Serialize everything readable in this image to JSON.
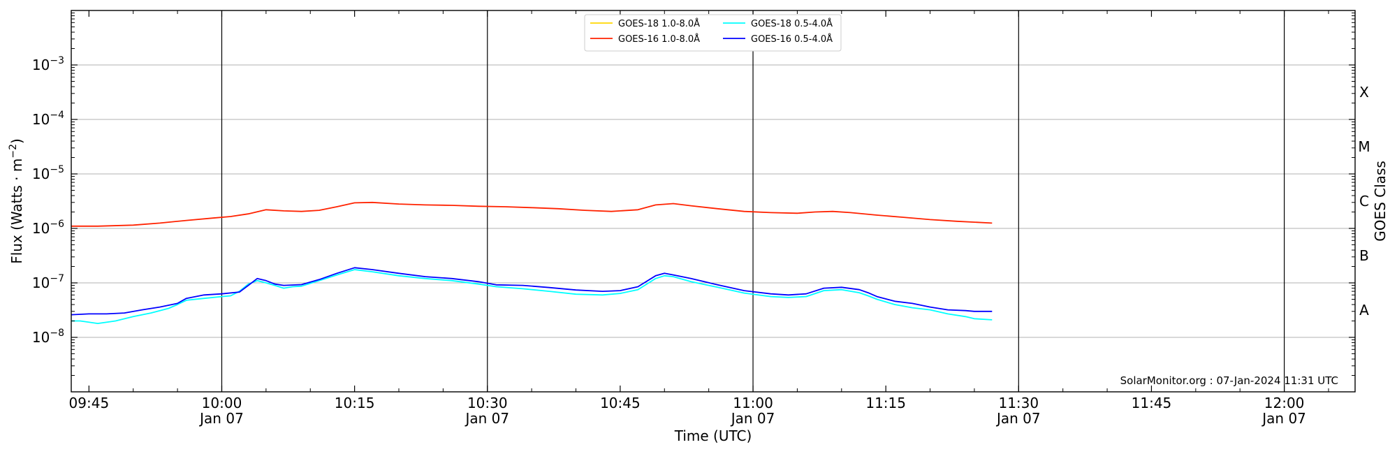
{
  "chart_data": {
    "type": "line",
    "title": "",
    "xlabel": "Time (UTC)",
    "ylabel": "Flux (Watts · m",
    "ylabel_sup": "−2",
    "ylabel_close": ")",
    "y2label": "GOES Class",
    "yscale": "log",
    "ylim": [
      1e-09,
      0.01
    ],
    "xlim": [
      "09:43",
      "12:08"
    ],
    "grid": "horizontal",
    "legend_position": "top-center",
    "y_ticks": [
      {
        "value": 1e-08,
        "base": "10",
        "exp": "−8"
      },
      {
        "value": 1e-07,
        "base": "10",
        "exp": "−7"
      },
      {
        "value": 1e-06,
        "base": "10",
        "exp": "−6"
      },
      {
        "value": 1e-05,
        "base": "10",
        "exp": "−5"
      },
      {
        "value": 0.0001,
        "base": "10",
        "exp": "−4"
      },
      {
        "value": 0.001,
        "base": "10",
        "exp": "−3"
      }
    ],
    "class_labels": [
      {
        "label": "A",
        "value": 1e-08
      },
      {
        "label": "B",
        "value": 1e-07
      },
      {
        "label": "C",
        "value": 1e-06
      },
      {
        "label": "M",
        "value": 1e-05
      },
      {
        "label": "X",
        "value": 0.0001
      }
    ],
    "x_ticks": [
      {
        "time": "09:45",
        "label": "09:45",
        "date": ""
      },
      {
        "time": "10:00",
        "label": "10:00",
        "date": "Jan 07"
      },
      {
        "time": "10:15",
        "label": "10:15",
        "date": ""
      },
      {
        "time": "10:30",
        "label": "10:30",
        "date": "Jan 07"
      },
      {
        "time": "10:45",
        "label": "10:45",
        "date": ""
      },
      {
        "time": "11:00",
        "label": "11:00",
        "date": "Jan 07"
      },
      {
        "time": "11:15",
        "label": "11:15",
        "date": ""
      },
      {
        "time": "11:30",
        "label": "11:30",
        "date": "Jan 07"
      },
      {
        "time": "11:45",
        "label": "11:45",
        "date": ""
      },
      {
        "time": "12:00",
        "label": "12:00",
        "date": "Jan 07"
      }
    ],
    "vertical_lines": [
      "10:00",
      "10:30",
      "11:00",
      "11:30",
      "12:00"
    ],
    "series": [
      {
        "name": "GOES-18 1.0-8.0Å",
        "color": "#ffd700",
        "x": [],
        "y": []
      },
      {
        "name": "GOES-16 1.0-8.0Å",
        "color": "#ff2200",
        "x": [
          "09:43",
          "09:46",
          "09:50",
          "09:53",
          "09:56",
          "09:59",
          "10:01",
          "10:03",
          "10:05",
          "10:07",
          "10:09",
          "10:11",
          "10:13",
          "10:15",
          "10:17",
          "10:20",
          "10:23",
          "10:26",
          "10:29",
          "10:32",
          "10:35",
          "10:38",
          "10:41",
          "10:44",
          "10:47",
          "10:49",
          "10:51",
          "10:53",
          "10:56",
          "10:59",
          "11:02",
          "11:05",
          "11:07",
          "11:09",
          "11:11",
          "11:14",
          "11:17",
          "11:20",
          "11:23",
          "11:27"
        ],
        "y": [
          1.1e-06,
          1.1e-06,
          1.15e-06,
          1.25e-06,
          1.4e-06,
          1.55e-06,
          1.65e-06,
          1.85e-06,
          2.2e-06,
          2.1e-06,
          2.05e-06,
          2.15e-06,
          2.5e-06,
          2.95e-06,
          3e-06,
          2.8e-06,
          2.7e-06,
          2.65e-06,
          2.55e-06,
          2.5e-06,
          2.4e-06,
          2.3e-06,
          2.15e-06,
          2.05e-06,
          2.2e-06,
          2.7e-06,
          2.85e-06,
          2.6e-06,
          2.3e-06,
          2.05e-06,
          1.95e-06,
          1.9e-06,
          2e-06,
          2.05e-06,
          1.95e-06,
          1.75e-06,
          1.6e-06,
          1.45e-06,
          1.35e-06,
          1.25e-06
        ]
      },
      {
        "name": "GOES-18 0.5-4.0Å",
        "color": "#00ffff",
        "x": [
          "09:43",
          "09:44",
          "09:46",
          "09:48",
          "09:50",
          "09:52",
          "09:54",
          "09:55",
          "09:56",
          "09:58",
          "10:00",
          "10:01",
          "10:02",
          "10:03",
          "10:04",
          "10:05",
          "10:06",
          "10:07",
          "10:08",
          "10:09",
          "10:11",
          "10:13",
          "10:15",
          "10:17",
          "10:20",
          "10:23",
          "10:26",
          "10:29",
          "10:31",
          "10:34",
          "10:37",
          "10:40",
          "10:43",
          "10:45",
          "10:47",
          "10:49",
          "10:50",
          "10:51",
          "10:53",
          "10:56",
          "10:59",
          "11:02",
          "11:04",
          "11:06",
          "11:08",
          "11:10",
          "11:12",
          "11:13",
          "11:14",
          "11:16",
          "11:18",
          "11:20",
          "11:22",
          "11:24",
          "11:25",
          "11:27"
        ],
        "y": [
          2e-08,
          2e-08,
          1.8e-08,
          2e-08,
          2.4e-08,
          2.8e-08,
          3.4e-08,
          4e-08,
          4.8e-08,
          5.2e-08,
          5.6e-08,
          5.8e-08,
          7e-08,
          9.5e-08,
          1.1e-07,
          1e-07,
          9e-08,
          8e-08,
          8.5e-08,
          8.7e-08,
          1.1e-07,
          1.4e-07,
          1.75e-07,
          1.6e-07,
          1.35e-07,
          1.2e-07,
          1.1e-07,
          9.5e-08,
          8.5e-08,
          7.8e-08,
          7e-08,
          6.2e-08,
          6e-08,
          6.4e-08,
          7.5e-08,
          1.2e-07,
          1.35e-07,
          1.3e-07,
          1.05e-07,
          8.3e-08,
          6.5e-08,
          5.6e-08,
          5.4e-08,
          5.6e-08,
          7.2e-08,
          7.5e-08,
          6.6e-08,
          5.8e-08,
          5e-08,
          4e-08,
          3.5e-08,
          3.2e-08,
          2.7e-08,
          2.4e-08,
          2.2e-08,
          2.1e-08
        ]
      },
      {
        "name": "GOES-16 0.5-4.0Å",
        "color": "#0000ff",
        "x": [
          "09:43",
          "09:45",
          "09:47",
          "09:49",
          "09:51",
          "09:53",
          "09:55",
          "09:56",
          "09:58",
          "10:00",
          "10:02",
          "10:03",
          "10:04",
          "10:05",
          "10:06",
          "10:07",
          "10:09",
          "10:11",
          "10:13",
          "10:15",
          "10:17",
          "10:20",
          "10:23",
          "10:26",
          "10:29",
          "10:31",
          "10:34",
          "10:37",
          "10:40",
          "10:43",
          "10:45",
          "10:47",
          "10:49",
          "10:50",
          "10:51",
          "10:53",
          "10:56",
          "10:59",
          "11:02",
          "11:04",
          "11:06",
          "11:08",
          "11:10",
          "11:12",
          "11:13",
          "11:14",
          "11:16",
          "11:18",
          "11:20",
          "11:22",
          "11:24",
          "11:25",
          "11:27"
        ],
        "y": [
          2.6e-08,
          2.7e-08,
          2.7e-08,
          2.8e-08,
          3.2e-08,
          3.6e-08,
          4.2e-08,
          5.2e-08,
          6e-08,
          6.3e-08,
          6.8e-08,
          9e-08,
          1.2e-07,
          1.1e-07,
          9.5e-08,
          9e-08,
          9.3e-08,
          1.15e-07,
          1.5e-07,
          1.9e-07,
          1.75e-07,
          1.5e-07,
          1.3e-07,
          1.2e-07,
          1.05e-07,
          9.2e-08,
          9e-08,
          8.2e-08,
          7.4e-08,
          7e-08,
          7.2e-08,
          8.5e-08,
          1.35e-07,
          1.5e-07,
          1.4e-07,
          1.2e-07,
          9.2e-08,
          7.2e-08,
          6.3e-08,
          6e-08,
          6.3e-08,
          8e-08,
          8.3e-08,
          7.5e-08,
          6.6e-08,
          5.6e-08,
          4.6e-08,
          4.2e-08,
          3.6e-08,
          3.2e-08,
          3.1e-08,
          3e-08,
          3e-08
        ]
      }
    ],
    "credit": "SolarMonitor.org : 07-Jan-2024 11:31 UTC"
  }
}
